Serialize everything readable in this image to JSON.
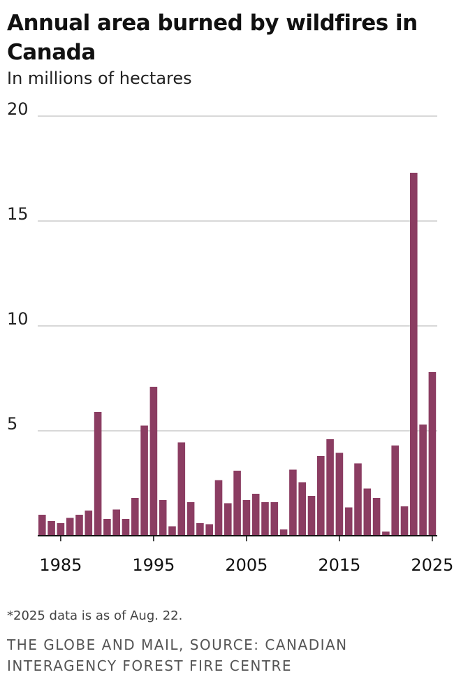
{
  "title": "Annual area burned by wildfires in Canada",
  "subtitle": "In millions of hectares",
  "note": "*2025 data is as of Aug. 22.",
  "credit": {
    "line1": "THE GLOBE AND MAIL, SOURCE: CANADIAN",
    "line2": "INTERAGENCY FOREST FIRE CENTRE"
  },
  "colors": {
    "bar": "#8B3D62",
    "grid": "#cccccc",
    "axis": "#111111"
  },
  "chart_data": {
    "type": "bar",
    "title": "Annual area burned by wildfires in Canada",
    "ylabel": "In millions of hectares",
    "xlabel": "",
    "ylim": [
      0,
      20
    ],
    "yticks": [
      5,
      10,
      15,
      20
    ],
    "xticks": [
      1985,
      1995,
      2005,
      2015,
      2025
    ],
    "categories": [
      1983,
      1984,
      1985,
      1986,
      1987,
      1988,
      1989,
      1990,
      1991,
      1992,
      1993,
      1994,
      1995,
      1996,
      1997,
      1998,
      1999,
      2000,
      2001,
      2002,
      2003,
      2004,
      2005,
      2006,
      2007,
      2008,
      2009,
      2010,
      2011,
      2012,
      2013,
      2014,
      2015,
      2016,
      2017,
      2018,
      2019,
      2020,
      2021,
      2022,
      2023,
      2024,
      2025
    ],
    "values": [
      1.0,
      0.7,
      0.6,
      0.85,
      1.0,
      1.2,
      5.9,
      0.8,
      1.25,
      0.8,
      1.8,
      5.25,
      7.1,
      1.7,
      0.45,
      4.45,
      1.6,
      0.6,
      0.55,
      2.65,
      1.55,
      3.1,
      1.7,
      2.0,
      1.6,
      1.6,
      0.3,
      3.15,
      2.55,
      1.9,
      3.8,
      4.6,
      3.95,
      1.35,
      3.45,
      2.25,
      1.8,
      0.2,
      4.3,
      1.4,
      17.3,
      5.3,
      7.8
    ],
    "grid": true
  }
}
